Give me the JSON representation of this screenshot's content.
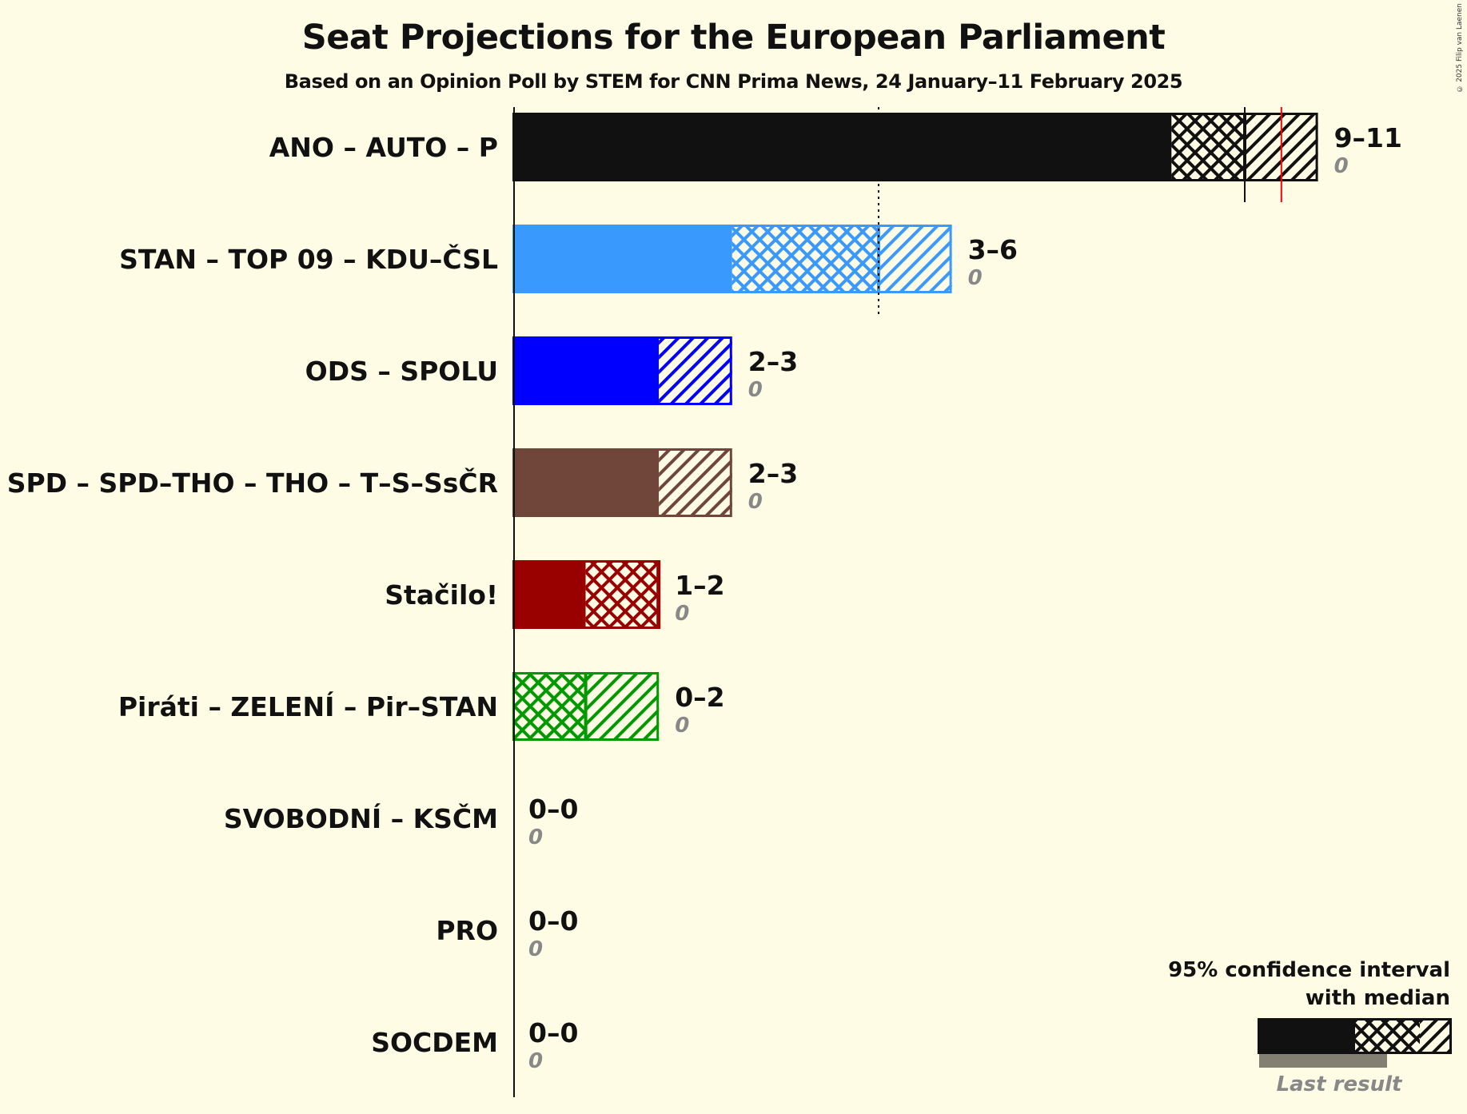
{
  "title": "Seat Projections for the European Parliament",
  "subtitle": "Based on an Opinion Poll by STEM for CNN Prima News, 24 January–11 February 2025",
  "copyright": "© 2025 Filip van Laenen",
  "legend": {
    "line1": "95% confidence interval",
    "line2": "with median",
    "last_result": "Last result"
  },
  "colors": {
    "background": "#FFFCE6",
    "median_line": "#111111",
    "last_result_line": "#FF0000",
    "last_result_bar": "#838073"
  },
  "chart_data": {
    "type": "bar",
    "orientation": "horizontal",
    "title": "Seat Projections for the European Parliament",
    "subtitle": "Based on an Opinion Poll by STEM for CNN Prima News, 24 January–11 February 2025",
    "xlabel": "",
    "ylabel": "",
    "xlim": [
      0,
      11
    ],
    "grid": false,
    "legend_position": "bottom-right",
    "majority_line": 5,
    "categories": [
      "ANO – AUTO – P",
      "STAN – TOP 09 – KDU–ČSL",
      "ODS – SPOLU",
      "SPD – SPD–THO – THO – T–S–SsČR",
      "Stačilo!",
      "Piráti – ZELENÍ – Pir–STAN",
      "SVOBODNÍ – KSČM",
      "PRO",
      "SOCDEM"
    ],
    "series": [
      {
        "name": "ANO – AUTO – P",
        "color": "#111111",
        "ci_low": 9,
        "median": 10,
        "ci_high": 11,
        "last_result": 0,
        "label": "9–11",
        "last_label": "0",
        "last_result_marker": 10.5
      },
      {
        "name": "STAN – TOP 09 – KDU–ČSL",
        "color": "#3A99FD",
        "ci_low": 3,
        "median": 5,
        "ci_high": 6,
        "last_result": 0,
        "label": "3–6",
        "last_label": "0"
      },
      {
        "name": "ODS – SPOLU",
        "color": "#0000FF",
        "ci_low": 2,
        "median": 2,
        "ci_high": 3,
        "last_result": 0,
        "label": "2–3",
        "last_label": "0"
      },
      {
        "name": "SPD – SPD–THO – THO – T–S–SsČR",
        "color": "#70463A",
        "ci_low": 2,
        "median": 2,
        "ci_high": 3,
        "last_result": 0,
        "label": "2–3",
        "last_label": "0"
      },
      {
        "name": "Stačilo!",
        "color": "#990000",
        "ci_low": 1,
        "median": 2,
        "ci_high": 2,
        "last_result": 0,
        "label": "1–2",
        "last_label": "0"
      },
      {
        "name": "Piráti – ZELENÍ – Pir–STAN",
        "color": "#009900",
        "ci_low": 0,
        "median": 1,
        "ci_high": 2,
        "last_result": 0,
        "label": "0–2",
        "last_label": "0"
      },
      {
        "name": "SVOBODNÍ – KSČM",
        "color": "#888888",
        "ci_low": 0,
        "median": 0,
        "ci_high": 0,
        "last_result": 0,
        "label": "0–0",
        "last_label": "0"
      },
      {
        "name": "PRO",
        "color": "#888888",
        "ci_low": 0,
        "median": 0,
        "ci_high": 0,
        "last_result": 0,
        "label": "0–0",
        "last_label": "0"
      },
      {
        "name": "SOCDEM",
        "color": "#888888",
        "ci_low": 0,
        "median": 0,
        "ci_high": 0,
        "last_result": 0,
        "label": "0–0",
        "last_label": "0"
      }
    ]
  }
}
